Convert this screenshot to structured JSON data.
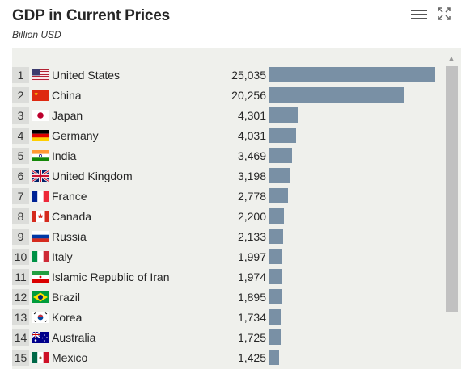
{
  "header": {
    "title": "GDP in Current Prices",
    "subtitle": "Billion USD"
  },
  "icons": {
    "menu": "hamburger-menu-icon",
    "expand": "fullscreen-expand-icon"
  },
  "colors": {
    "bar": "#7990a5",
    "panel": "#eff0ec",
    "rank_bg": "#dcddda"
  },
  "chart_data": {
    "type": "bar",
    "orientation": "horizontal",
    "title": "GDP in Current Prices",
    "subtitle": "Billion USD",
    "unit": "Billion USD",
    "categories": [
      "United States",
      "China",
      "Japan",
      "Germany",
      "India",
      "United Kingdom",
      "France",
      "Canada",
      "Russia",
      "Italy",
      "Islamic Republic of Iran",
      "Brazil",
      "Korea",
      "Australia",
      "Mexico"
    ],
    "ranks": [
      "1",
      "2",
      "3",
      "4",
      "5",
      "6",
      "7",
      "8",
      "9",
      "10",
      "11",
      "12",
      "13",
      "14",
      "15"
    ],
    "values": [
      25035,
      20256,
      4301,
      4031,
      3469,
      3198,
      2778,
      2200,
      2133,
      1997,
      1974,
      1895,
      1734,
      1725,
      1425
    ],
    "value_labels": [
      "25,035",
      "20,256",
      "4,301",
      "4,031",
      "3,469",
      "3,198",
      "2,778",
      "2,200",
      "2,133",
      "1,997",
      "1,974",
      "1,895",
      "1,734",
      "1,725",
      "1,425"
    ],
    "flags": [
      "us-flag-icon",
      "cn-flag-icon",
      "jp-flag-icon",
      "de-flag-icon",
      "in-flag-icon",
      "gb-flag-icon",
      "fr-flag-icon",
      "ca-flag-icon",
      "ru-flag-icon",
      "it-flag-icon",
      "ir-flag-icon",
      "br-flag-icon",
      "kr-flag-icon",
      "au-flag-icon",
      "mx-flag-icon"
    ],
    "xlim": [
      0,
      25035
    ],
    "legend": "none",
    "grid": false
  }
}
